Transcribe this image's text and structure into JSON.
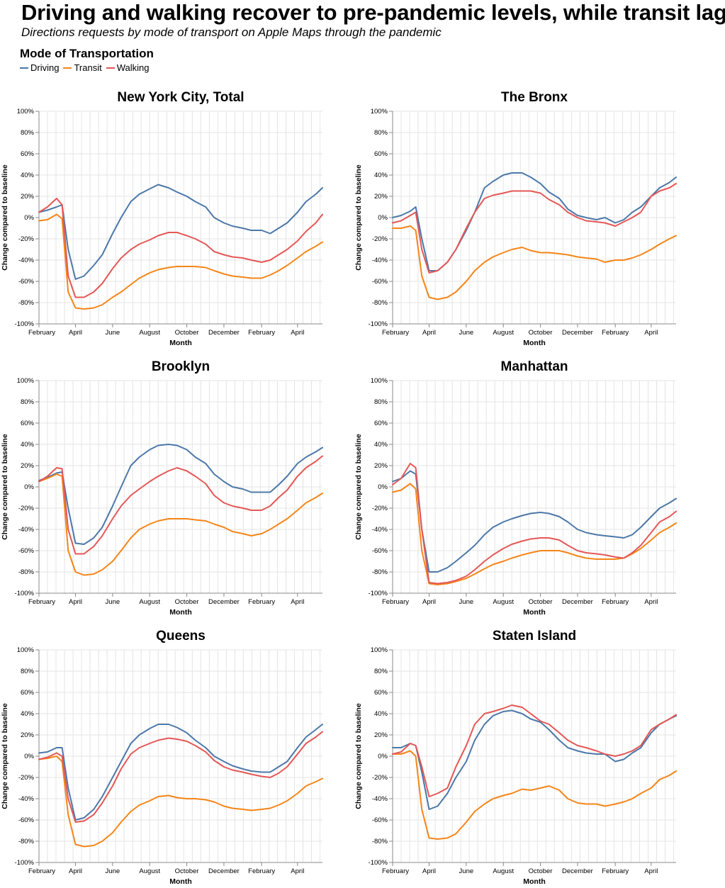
{
  "title": "Driving and walking recover to pre-pandemic levels, while transit lags",
  "subtitle": "Directions requests by mode of transport on Apple Maps through the pandemic",
  "legend": {
    "title": "Mode of Transportation",
    "items": [
      {
        "label": "Driving",
        "color": "#4c78a8"
      },
      {
        "label": "Transit",
        "color": "#f58518"
      },
      {
        "label": "Walking",
        "color": "#e45756"
      }
    ]
  },
  "chart_data": [
    {
      "type": "line",
      "title": "New York City, Total",
      "xlabel": "Month",
      "ylabel": "Change compared to baseline",
      "ylim": [
        -100,
        100
      ],
      "yticks": [
        "100%",
        "80%",
        "60%",
        "40%",
        "20%",
        "0%",
        "-20%",
        "-40%",
        "-60%",
        "-80%",
        "-100%"
      ],
      "xticks": [
        "February",
        "April",
        "June",
        "August",
        "October",
        "December",
        "February",
        "April"
      ],
      "grid": true,
      "x": [
        "2020-02-01",
        "2020-02-15",
        "2020-03-01",
        "2020-03-10",
        "2020-03-20",
        "2020-04-01",
        "2020-04-15",
        "2020-05-01",
        "2020-05-15",
        "2020-06-01",
        "2020-06-15",
        "2020-07-01",
        "2020-07-15",
        "2020-08-01",
        "2020-08-15",
        "2020-09-01",
        "2020-09-15",
        "2020-10-01",
        "2020-10-15",
        "2020-11-01",
        "2020-11-15",
        "2020-12-01",
        "2020-12-15",
        "2021-01-01",
        "2021-01-15",
        "2021-02-01",
        "2021-02-15",
        "2021-03-01",
        "2021-03-15",
        "2021-04-01",
        "2021-04-15",
        "2021-05-01",
        "2021-05-12"
      ],
      "series": [
        {
          "name": "Driving",
          "values": [
            5,
            7,
            10,
            12,
            -30,
            -58,
            -55,
            -45,
            -35,
            -15,
            0,
            15,
            22,
            27,
            31,
            28,
            24,
            20,
            15,
            10,
            0,
            -5,
            -8,
            -10,
            -12,
            -12,
            -15,
            -10,
            -5,
            5,
            15,
            22,
            28
          ]
        },
        {
          "name": "Transit",
          "values": [
            -3,
            -2,
            3,
            -1,
            -70,
            -85,
            -86,
            -85,
            -82,
            -75,
            -70,
            -63,
            -57,
            -52,
            -49,
            -47,
            -46,
            -46,
            -46,
            -47,
            -50,
            -53,
            -55,
            -56,
            -57,
            -57,
            -54,
            -50,
            -45,
            -38,
            -32,
            -27,
            -23
          ]
        },
        {
          "name": "Walking",
          "values": [
            5,
            10,
            18,
            12,
            -55,
            -75,
            -75,
            -70,
            -62,
            -48,
            -38,
            -30,
            -25,
            -21,
            -17,
            -14,
            -14,
            -17,
            -20,
            -25,
            -32,
            -35,
            -37,
            -38,
            -40,
            -42,
            -40,
            -35,
            -30,
            -22,
            -13,
            -5,
            3
          ]
        }
      ]
    },
    {
      "type": "line",
      "title": "The Bronx",
      "xlabel": "Month",
      "ylabel": "Change compared to baseline",
      "ylim": [
        -100,
        100
      ],
      "yticks": [
        "100%",
        "80%",
        "60%",
        "40%",
        "20%",
        "0%",
        "-20%",
        "-40%",
        "-60%",
        "-80%",
        "-100%"
      ],
      "xticks": [
        "February",
        "April",
        "June",
        "August",
        "October",
        "December",
        "February",
        "April"
      ],
      "grid": true,
      "x": [
        "2020-02-01",
        "2020-02-15",
        "2020-03-01",
        "2020-03-10",
        "2020-03-20",
        "2020-04-01",
        "2020-04-15",
        "2020-05-01",
        "2020-05-15",
        "2020-06-01",
        "2020-06-15",
        "2020-07-01",
        "2020-07-15",
        "2020-08-01",
        "2020-08-15",
        "2020-09-01",
        "2020-09-15",
        "2020-10-01",
        "2020-10-15",
        "2020-11-01",
        "2020-11-15",
        "2020-12-01",
        "2020-12-15",
        "2021-01-01",
        "2021-01-15",
        "2021-02-01",
        "2021-02-15",
        "2021-03-01",
        "2021-03-15",
        "2021-04-01",
        "2021-04-15",
        "2021-05-01",
        "2021-05-12"
      ],
      "series": [
        {
          "name": "Driving",
          "values": [
            0,
            2,
            6,
            10,
            -20,
            -50,
            -50,
            -42,
            -30,
            -12,
            5,
            28,
            34,
            40,
            42,
            42,
            38,
            32,
            24,
            18,
            8,
            2,
            0,
            -2,
            0,
            -5,
            -2,
            5,
            10,
            20,
            28,
            33,
            38
          ]
        },
        {
          "name": "Transit",
          "values": [
            -10,
            -10,
            -8,
            -12,
            -55,
            -75,
            -77,
            -75,
            -70,
            -60,
            -50,
            -42,
            -37,
            -33,
            -30,
            -28,
            -31,
            -33,
            -33,
            -34,
            -35,
            -37,
            -38,
            -39,
            -42,
            -40,
            -40,
            -38,
            -35,
            -30,
            -25,
            -20,
            -17
          ]
        },
        {
          "name": "Walking",
          "values": [
            -5,
            -3,
            2,
            5,
            -30,
            -52,
            -50,
            -42,
            -30,
            -10,
            5,
            18,
            21,
            23,
            25,
            25,
            25,
            23,
            17,
            12,
            5,
            0,
            -3,
            -4,
            -5,
            -8,
            -4,
            0,
            5,
            20,
            25,
            28,
            32
          ]
        }
      ]
    },
    {
      "type": "line",
      "title": "Brooklyn",
      "xlabel": "Month",
      "ylabel": "Change compared to baseline",
      "ylim": [
        -100,
        100
      ],
      "yticks": [
        "100%",
        "80%",
        "60%",
        "40%",
        "20%",
        "0%",
        "-20%",
        "-40%",
        "-60%",
        "-80%",
        "-100%"
      ],
      "xticks": [
        "February",
        "April",
        "June",
        "August",
        "October",
        "December",
        "February",
        "April"
      ],
      "grid": true,
      "x": [
        "2020-02-01",
        "2020-02-15",
        "2020-03-01",
        "2020-03-10",
        "2020-03-20",
        "2020-04-01",
        "2020-04-15",
        "2020-05-01",
        "2020-05-15",
        "2020-06-01",
        "2020-06-15",
        "2020-07-01",
        "2020-07-15",
        "2020-08-01",
        "2020-08-15",
        "2020-09-01",
        "2020-09-15",
        "2020-10-01",
        "2020-10-15",
        "2020-11-01",
        "2020-11-15",
        "2020-12-01",
        "2020-12-15",
        "2021-01-01",
        "2021-01-15",
        "2021-02-01",
        "2021-02-15",
        "2021-03-01",
        "2021-03-15",
        "2021-04-01",
        "2021-04-15",
        "2021-05-01",
        "2021-05-12"
      ],
      "series": [
        {
          "name": "Driving",
          "values": [
            6,
            9,
            13,
            14,
            -20,
            -53,
            -54,
            -48,
            -38,
            -18,
            0,
            20,
            28,
            35,
            39,
            40,
            39,
            35,
            28,
            22,
            12,
            5,
            0,
            -2,
            -5,
            -5,
            -5,
            2,
            10,
            22,
            28,
            33,
            37
          ]
        },
        {
          "name": "Transit",
          "values": [
            5,
            8,
            12,
            10,
            -60,
            -80,
            -83,
            -82,
            -78,
            -70,
            -60,
            -48,
            -40,
            -35,
            -32,
            -30,
            -30,
            -30,
            -31,
            -32,
            -35,
            -38,
            -42,
            -44,
            -46,
            -44,
            -40,
            -35,
            -30,
            -22,
            -15,
            -10,
            -6
          ]
        },
        {
          "name": "Walking",
          "values": [
            5,
            10,
            18,
            17,
            -40,
            -63,
            -63,
            -56,
            -46,
            -30,
            -18,
            -8,
            -2,
            5,
            10,
            15,
            18,
            15,
            10,
            3,
            -8,
            -15,
            -18,
            -20,
            -22,
            -22,
            -18,
            -10,
            -3,
            10,
            18,
            24,
            29
          ]
        }
      ]
    },
    {
      "type": "line",
      "title": "Manhattan",
      "xlabel": "Month",
      "ylabel": "Change compared to baseline",
      "ylim": [
        -100,
        100
      ],
      "yticks": [
        "100%",
        "80%",
        "60%",
        "40%",
        "20%",
        "0%",
        "-20%",
        "-40%",
        "-60%",
        "-80%",
        "-100%"
      ],
      "xticks": [
        "February",
        "April",
        "June",
        "August",
        "October",
        "December",
        "February",
        "April"
      ],
      "grid": true,
      "x": [
        "2020-02-01",
        "2020-02-15",
        "2020-03-01",
        "2020-03-10",
        "2020-03-20",
        "2020-04-01",
        "2020-04-15",
        "2020-05-01",
        "2020-05-15",
        "2020-06-01",
        "2020-06-15",
        "2020-07-01",
        "2020-07-15",
        "2020-08-01",
        "2020-08-15",
        "2020-09-01",
        "2020-09-15",
        "2020-10-01",
        "2020-10-15",
        "2020-11-01",
        "2020-11-15",
        "2020-12-01",
        "2020-12-15",
        "2021-01-01",
        "2021-01-15",
        "2021-02-01",
        "2021-02-15",
        "2021-03-01",
        "2021-03-15",
        "2021-04-01",
        "2021-04-15",
        "2021-05-01",
        "2021-05-12"
      ],
      "series": [
        {
          "name": "Driving",
          "values": [
            5,
            8,
            15,
            12,
            -40,
            -80,
            -80,
            -76,
            -70,
            -62,
            -55,
            -45,
            -38,
            -33,
            -30,
            -27,
            -25,
            -24,
            -25,
            -28,
            -33,
            -40,
            -43,
            -45,
            -46,
            -47,
            -48,
            -45,
            -38,
            -28,
            -20,
            -15,
            -11
          ]
        },
        {
          "name": "Transit",
          "values": [
            -5,
            -3,
            3,
            -2,
            -60,
            -91,
            -92,
            -91,
            -89,
            -86,
            -82,
            -77,
            -73,
            -70,
            -67,
            -64,
            -62,
            -60,
            -60,
            -60,
            -62,
            -65,
            -67,
            -68,
            -68,
            -68,
            -67,
            -63,
            -58,
            -50,
            -43,
            -38,
            -34
          ]
        },
        {
          "name": "Walking",
          "values": [
            2,
            8,
            22,
            18,
            -40,
            -90,
            -91,
            -90,
            -88,
            -84,
            -78,
            -70,
            -64,
            -58,
            -54,
            -51,
            -49,
            -48,
            -48,
            -50,
            -55,
            -60,
            -62,
            -63,
            -64,
            -66,
            -67,
            -62,
            -55,
            -43,
            -33,
            -28,
            -23
          ]
        }
      ]
    },
    {
      "type": "line",
      "title": "Queens",
      "xlabel": "Month",
      "ylabel": "Change compared to baseline",
      "ylim": [
        -100,
        100
      ],
      "yticks": [
        "100%",
        "80%",
        "60%",
        "40%",
        "20%",
        "0%",
        "-20%",
        "-40%",
        "-60%",
        "-80%",
        "-100%"
      ],
      "xticks": [
        "February",
        "April",
        "June",
        "August",
        "October",
        "December",
        "February",
        "April"
      ],
      "grid": true,
      "x": [
        "2020-02-01",
        "2020-02-15",
        "2020-03-01",
        "2020-03-10",
        "2020-03-20",
        "2020-04-01",
        "2020-04-15",
        "2020-05-01",
        "2020-05-15",
        "2020-06-01",
        "2020-06-15",
        "2020-07-01",
        "2020-07-15",
        "2020-08-01",
        "2020-08-15",
        "2020-09-01",
        "2020-09-15",
        "2020-10-01",
        "2020-10-15",
        "2020-11-01",
        "2020-11-15",
        "2020-12-01",
        "2020-12-15",
        "2021-01-01",
        "2021-01-15",
        "2021-02-01",
        "2021-02-15",
        "2021-03-01",
        "2021-03-15",
        "2021-04-01",
        "2021-04-15",
        "2021-05-01",
        "2021-05-12"
      ],
      "series": [
        {
          "name": "Driving",
          "values": [
            3,
            4,
            8,
            8,
            -30,
            -60,
            -58,
            -50,
            -38,
            -20,
            -5,
            12,
            20,
            26,
            30,
            30,
            27,
            22,
            15,
            8,
            0,
            -5,
            -9,
            -12,
            -14,
            -15,
            -15,
            -10,
            -5,
            8,
            18,
            25,
            30
          ]
        },
        {
          "name": "Transit",
          "values": [
            -3,
            -2,
            0,
            -5,
            -55,
            -83,
            -85,
            -84,
            -80,
            -72,
            -62,
            -52,
            -46,
            -42,
            -38,
            -37,
            -39,
            -40,
            -40,
            -41,
            -43,
            -47,
            -49,
            -50,
            -51,
            -50,
            -49,
            -46,
            -42,
            -35,
            -28,
            -24,
            -21
          ]
        },
        {
          "name": "Walking",
          "values": [
            -3,
            -1,
            3,
            0,
            -40,
            -62,
            -61,
            -55,
            -44,
            -28,
            -12,
            2,
            8,
            12,
            15,
            17,
            16,
            14,
            10,
            4,
            -4,
            -10,
            -13,
            -15,
            -17,
            -19,
            -20,
            -16,
            -10,
            2,
            12,
            18,
            23
          ]
        }
      ]
    },
    {
      "type": "line",
      "title": "Staten Island",
      "xlabel": "Month",
      "ylabel": "Change compared to baseline",
      "ylim": [
        -100,
        100
      ],
      "yticks": [
        "100%",
        "80%",
        "60%",
        "40%",
        "20%",
        "0%",
        "-20%",
        "-40%",
        "-60%",
        "-80%",
        "-100%"
      ],
      "xticks": [
        "February",
        "April",
        "June",
        "August",
        "October",
        "December",
        "February",
        "April"
      ],
      "grid": true,
      "x": [
        "2020-02-01",
        "2020-02-15",
        "2020-03-01",
        "2020-03-10",
        "2020-03-20",
        "2020-04-01",
        "2020-04-15",
        "2020-05-01",
        "2020-05-15",
        "2020-06-01",
        "2020-06-15",
        "2020-07-01",
        "2020-07-15",
        "2020-08-01",
        "2020-08-15",
        "2020-09-01",
        "2020-09-15",
        "2020-10-01",
        "2020-10-15",
        "2020-11-01",
        "2020-11-15",
        "2020-12-01",
        "2020-12-15",
        "2021-01-01",
        "2021-01-15",
        "2021-02-01",
        "2021-02-15",
        "2021-03-01",
        "2021-03-15",
        "2021-04-01",
        "2021-04-15",
        "2021-05-01",
        "2021-05-12"
      ],
      "series": [
        {
          "name": "Driving",
          "values": [
            8,
            8,
            12,
            10,
            -15,
            -50,
            -47,
            -35,
            -20,
            -5,
            15,
            30,
            38,
            42,
            43,
            40,
            35,
            32,
            25,
            15,
            8,
            5,
            3,
            2,
            2,
            -5,
            -3,
            3,
            8,
            22,
            30,
            35,
            38
          ]
        },
        {
          "name": "Transit",
          "values": [
            2,
            2,
            5,
            0,
            -50,
            -77,
            -78,
            -77,
            -73,
            -62,
            -52,
            -45,
            -40,
            -37,
            -35,
            -31,
            -32,
            -30,
            -28,
            -32,
            -40,
            -44,
            -45,
            -45,
            -47,
            -45,
            -43,
            -40,
            -35,
            -30,
            -22,
            -18,
            -14
          ]
        },
        {
          "name": "Walking",
          "values": [
            2,
            4,
            12,
            10,
            -10,
            -38,
            -35,
            -30,
            -10,
            10,
            30,
            40,
            42,
            45,
            48,
            46,
            40,
            33,
            30,
            22,
            15,
            10,
            8,
            5,
            2,
            0,
            2,
            5,
            10,
            25,
            30,
            35,
            39
          ]
        }
      ]
    }
  ]
}
